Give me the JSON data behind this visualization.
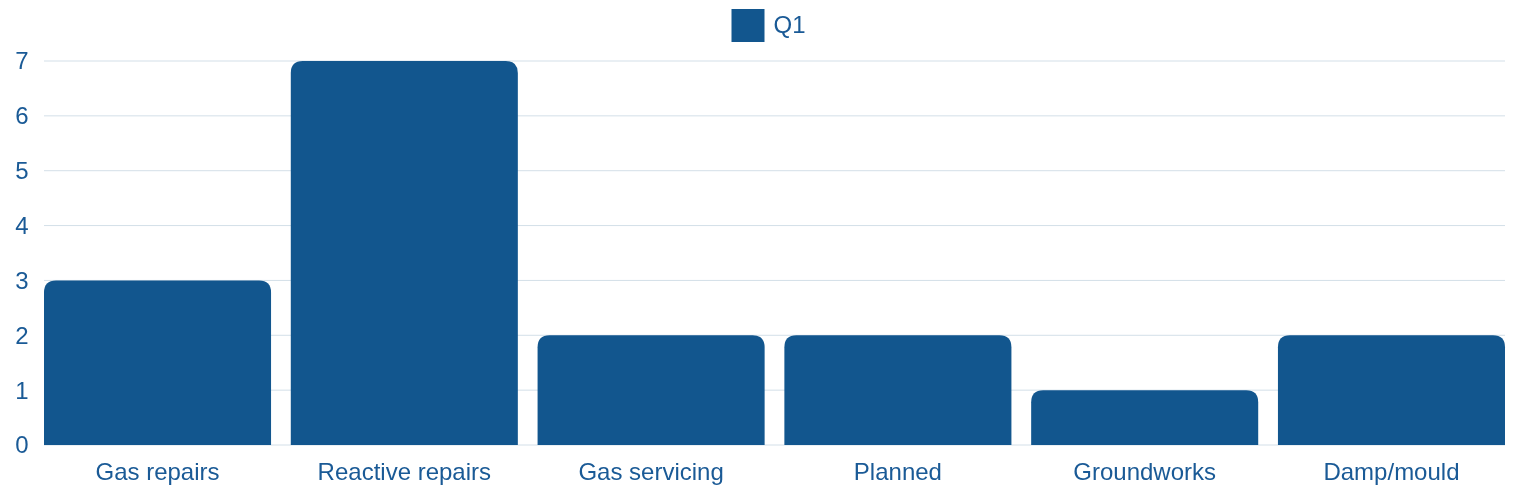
{
  "chart_data": {
    "type": "bar",
    "categories": [
      "Gas repairs",
      "Reactive repairs",
      "Gas servicing",
      "Planned",
      "Groundworks",
      "Damp/mould"
    ],
    "series": [
      {
        "name": "Q1",
        "color": "#12568e",
        "values": [
          3,
          7,
          2,
          2,
          1,
          2
        ]
      }
    ],
    "ylim": [
      0,
      7
    ],
    "yticks": [
      0,
      1,
      2,
      3,
      4,
      5,
      6,
      7
    ],
    "grid": "y",
    "legend": "top"
  }
}
